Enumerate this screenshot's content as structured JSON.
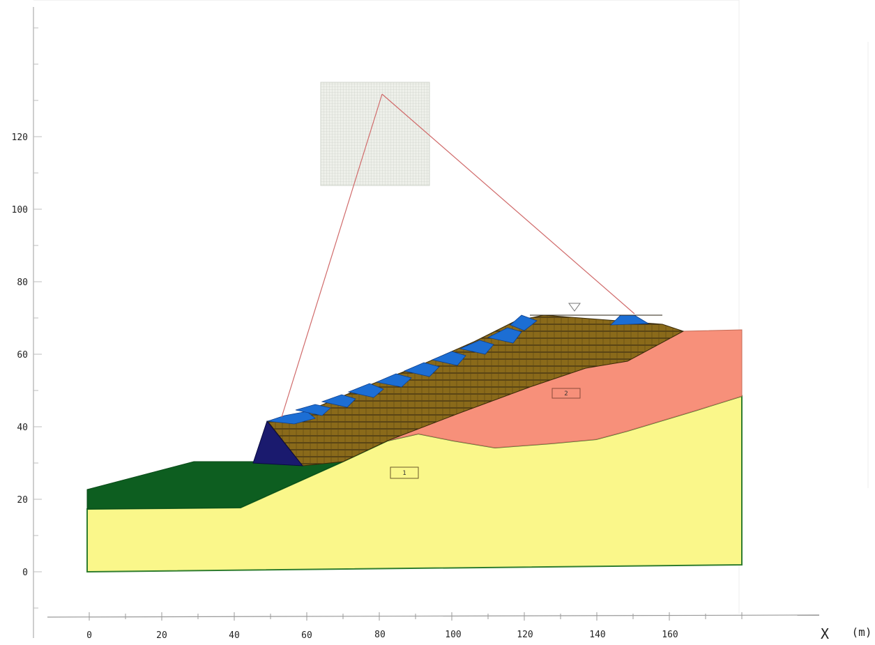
{
  "axes": {
    "x_title": "X",
    "x_unit": "(m)",
    "x_ticks": [
      "0",
      "20",
      "40",
      "60",
      "80",
      "100",
      "120",
      "140",
      "160"
    ],
    "y_ticks": [
      "0",
      "20",
      "40",
      "60",
      "80",
      "100",
      "120"
    ]
  },
  "materials": {
    "label_1": "1",
    "label_2": "2"
  },
  "colors": {
    "bedrock": "#faf78a",
    "weathered": "#f7907a",
    "dark_green": "#0d5e20",
    "fill_layer": "#8a6a1a",
    "blue_steps": "#1c6ed4",
    "navy_toe": "#1a1a6e",
    "slip_line": "#d06a6a"
  }
}
